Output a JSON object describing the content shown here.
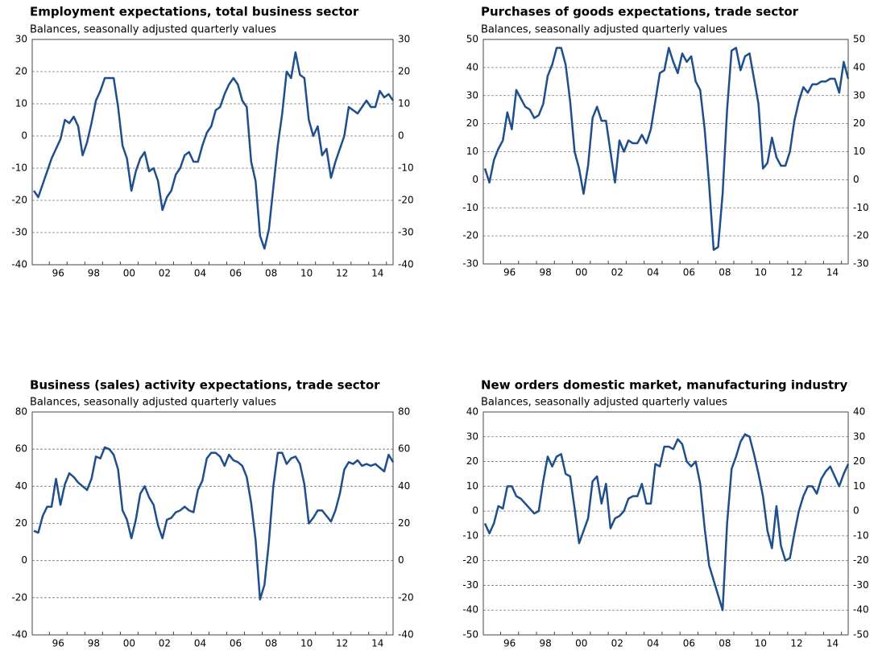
{
  "chart_data": [
    {
      "type": "line",
      "title": "Employment expectations, total business sector",
      "subtitle": "Balances, seasonally adjusted quarterly values",
      "categories": [
        null,
        null,
        null,
        null,
        null,
        "96",
        null,
        null,
        null,
        null,
        null,
        null,
        null,
        "98",
        null,
        null,
        null,
        null,
        null,
        null,
        null,
        "00",
        null,
        null,
        null,
        null,
        null,
        null,
        null,
        "02",
        null,
        null,
        null,
        null,
        null,
        null,
        null,
        "04",
        null,
        null,
        null,
        null,
        null,
        null,
        null,
        "06",
        null,
        null,
        null,
        null,
        null,
        null,
        null,
        "08",
        null,
        null,
        null,
        null,
        null,
        null,
        null,
        "10",
        null,
        null,
        null,
        null,
        null,
        null,
        null,
        "12",
        null,
        null,
        null,
        null,
        null,
        null,
        null,
        "14",
        null,
        null,
        null,
        null
      ],
      "series": [
        {
          "name": "Employment expectations",
          "color": "#1f4e8c",
          "values": [
            -17,
            -19,
            -15,
            -11,
            -7,
            -4,
            -1,
            5,
            4,
            6,
            3,
            -6,
            -2,
            4,
            11,
            14,
            18,
            18,
            18,
            9,
            -3,
            -7,
            -17,
            -11,
            -7,
            -5,
            -11,
            -10,
            -14,
            -23,
            -19,
            -17,
            -12,
            -10,
            -6,
            -5,
            -8,
            -8,
            -3,
            1,
            3,
            8,
            9,
            13,
            16,
            18,
            16,
            11,
            9,
            -8,
            -14,
            -31,
            -35,
            -29,
            -16,
            -3,
            7,
            20,
            18,
            26,
            19,
            18,
            5,
            0,
            3,
            -6,
            -4,
            -13,
            -8,
            -4,
            0,
            9,
            8,
            7,
            9,
            11,
            9,
            9,
            14,
            12,
            13,
            11
          ]
        }
      ],
      "ylim": [
        -40,
        30
      ],
      "yticks": [
        -40,
        -30,
        -20,
        -10,
        0,
        10,
        20,
        30
      ],
      "grid": true
    },
    {
      "type": "line",
      "title": "Purchases of goods expectations, trade sector",
      "subtitle": "Balances, seasonally adjusted quarterly values",
      "categories": [
        null,
        null,
        null,
        null,
        null,
        "96",
        null,
        null,
        null,
        null,
        null,
        null,
        null,
        "98",
        null,
        null,
        null,
        null,
        null,
        null,
        null,
        "00",
        null,
        null,
        null,
        null,
        null,
        null,
        null,
        "02",
        null,
        null,
        null,
        null,
        null,
        null,
        null,
        "04",
        null,
        null,
        null,
        null,
        null,
        null,
        null,
        "06",
        null,
        null,
        null,
        null,
        null,
        null,
        null,
        "08",
        null,
        null,
        null,
        null,
        null,
        null,
        null,
        "10",
        null,
        null,
        null,
        null,
        null,
        null,
        null,
        "12",
        null,
        null,
        null,
        null,
        null,
        null,
        null,
        "14",
        null,
        null,
        null,
        null
      ],
      "series": [
        {
          "name": "Purchases of goods expectations",
          "color": "#1f4e8c",
          "values": [
            4,
            -1,
            7,
            11,
            14,
            24,
            18,
            32,
            29,
            26,
            25,
            22,
            23,
            27,
            37,
            41,
            47,
            47,
            41,
            28,
            10,
            4,
            -5,
            5,
            22,
            26,
            21,
            21,
            10,
            -1,
            14,
            10,
            14,
            13,
            13,
            16,
            13,
            18,
            28,
            38,
            39,
            47,
            42,
            38,
            45,
            42,
            44,
            35,
            32,
            18,
            -2,
            -25,
            -24,
            -5,
            25,
            46,
            47,
            39,
            44,
            45,
            36,
            27,
            4,
            6,
            15,
            8,
            5,
            5,
            10,
            21,
            28,
            33,
            31,
            34,
            34,
            35,
            35,
            36,
            36,
            31,
            42,
            36
          ]
        }
      ],
      "ylim": [
        -30,
        50
      ],
      "yticks": [
        -30,
        -20,
        -10,
        0,
        10,
        20,
        30,
        40,
        50
      ],
      "grid": true
    },
    {
      "type": "line",
      "title": "Business (sales) activity expectations, trade sector",
      "subtitle": "Balances, seasonally adjusted quarterly values",
      "categories": [
        null,
        null,
        null,
        null,
        null,
        "96",
        null,
        null,
        null,
        null,
        null,
        null,
        null,
        "98",
        null,
        null,
        null,
        null,
        null,
        null,
        null,
        "00",
        null,
        null,
        null,
        null,
        null,
        null,
        null,
        "02",
        null,
        null,
        null,
        null,
        null,
        null,
        null,
        "04",
        null,
        null,
        null,
        null,
        null,
        null,
        null,
        "06",
        null,
        null,
        null,
        null,
        null,
        null,
        null,
        "08",
        null,
        null,
        null,
        null,
        null,
        null,
        null,
        "10",
        null,
        null,
        null,
        null,
        null,
        null,
        null,
        "12",
        null,
        null,
        null,
        null,
        null,
        null,
        null,
        "14",
        null,
        null,
        null,
        null
      ],
      "series": [
        {
          "name": "Business activity expectations",
          "color": "#1f4e8c",
          "values": [
            16,
            15,
            24,
            29,
            29,
            44,
            30,
            41,
            47,
            45,
            42,
            40,
            38,
            44,
            56,
            55,
            61,
            60,
            57,
            49,
            27,
            22,
            12,
            22,
            36,
            40,
            34,
            30,
            19,
            12,
            22,
            23,
            26,
            27,
            29,
            27,
            26,
            38,
            43,
            55,
            58,
            58,
            56,
            51,
            57,
            54,
            53,
            51,
            45,
            31,
            11,
            -21,
            -13,
            10,
            40,
            58,
            58,
            52,
            55,
            56,
            52,
            41,
            20,
            23,
            27,
            27,
            24,
            21,
            27,
            36,
            49,
            53,
            52,
            54,
            51,
            52,
            51,
            52,
            50,
            48,
            57,
            53
          ]
        }
      ],
      "ylim": [
        -40,
        80
      ],
      "yticks": [
        -40,
        -20,
        0,
        20,
        40,
        60,
        80
      ],
      "grid": true
    },
    {
      "type": "line",
      "title": "New orders domestic market, manufacturing industry",
      "subtitle": "Balances, seasonally adjusted quarterly values",
      "categories": [
        null,
        null,
        null,
        null,
        null,
        "96",
        null,
        null,
        null,
        null,
        null,
        null,
        null,
        "98",
        null,
        null,
        null,
        null,
        null,
        null,
        null,
        "00",
        null,
        null,
        null,
        null,
        null,
        null,
        null,
        "02",
        null,
        null,
        null,
        null,
        null,
        null,
        null,
        "04",
        null,
        null,
        null,
        null,
        null,
        null,
        null,
        "06",
        null,
        null,
        null,
        null,
        null,
        null,
        null,
        "08",
        null,
        null,
        null,
        null,
        null,
        null,
        null,
        "10",
        null,
        null,
        null,
        null,
        null,
        null,
        null,
        "12",
        null,
        null,
        null,
        null,
        null,
        null,
        null,
        "14",
        null,
        null,
        null,
        null
      ],
      "series": [
        {
          "name": "New orders domestic market",
          "color": "#1f4e8c",
          "values": [
            -5,
            -9,
            -5,
            2,
            1,
            10,
            10,
            6,
            5,
            3,
            1,
            -1,
            0,
            12,
            22,
            18,
            22,
            23,
            15,
            14,
            1,
            -13,
            -8,
            -3,
            12,
            14,
            3,
            11,
            -7,
            -3,
            -2,
            0,
            5,
            6,
            6,
            11,
            3,
            3,
            19,
            18,
            26,
            26,
            25,
            29,
            27,
            20,
            18,
            20,
            11,
            -7,
            -22,
            -28,
            -34,
            -40,
            -5,
            17,
            22,
            28,
            31,
            30,
            23,
            15,
            6,
            -8,
            -15,
            2,
            -14,
            -20,
            -19,
            -9,
            0,
            6,
            10,
            10,
            7,
            13,
            16,
            18,
            14,
            10,
            15,
            19
          ]
        }
      ],
      "ylim": [
        -50,
        40
      ],
      "yticks": [
        -50,
        -40,
        -30,
        -20,
        -10,
        0,
        10,
        20,
        30,
        40
      ],
      "grid": true
    }
  ]
}
